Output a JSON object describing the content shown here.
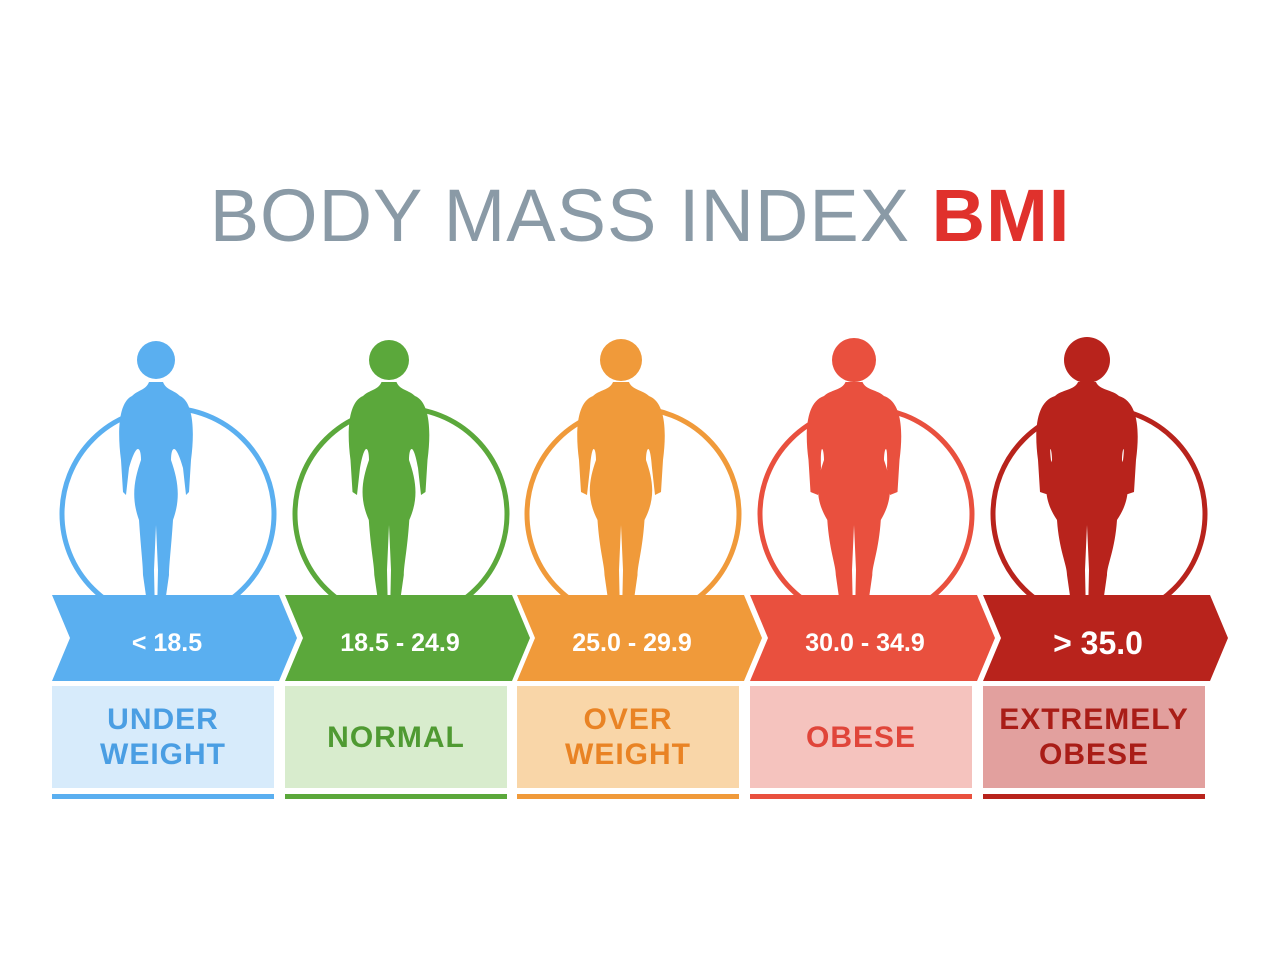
{
  "title": {
    "main": "BODY MASS INDEX",
    "accent": "BMI"
  },
  "categories": [
    {
      "range": "< 18.5",
      "lines": [
        "UNDER",
        "WEIGHT"
      ],
      "color": "#5aaff0",
      "light": "#d7ebfb",
      "text": "#4a9ee3",
      "build": 0.0
    },
    {
      "range": "18.5 - 24.9",
      "lines": [
        "NORMAL"
      ],
      "color": "#5ba83b",
      "light": "#d8eccd",
      "text": "#4f9a32",
      "build": 0.25
    },
    {
      "range": "25.0 - 29.9",
      "lines": [
        "OVER",
        "WEIGHT"
      ],
      "color": "#f09a3a",
      "light": "#f9d6a8",
      "text": "#e98324",
      "build": 0.5
    },
    {
      "range": "30.0 - 34.9",
      "lines": [
        "OBESE"
      ],
      "color": "#e9503e",
      "light": "#f5c3be",
      "text": "#e0453a",
      "build": 0.75
    },
    {
      "range": "> 35.0",
      "lines": [
        "EXTREMELY",
        "OBESE"
      ],
      "color": "#b8231c",
      "light": "#e2a09e",
      "text": "#a91d17",
      "build": 1.0
    }
  ]
}
